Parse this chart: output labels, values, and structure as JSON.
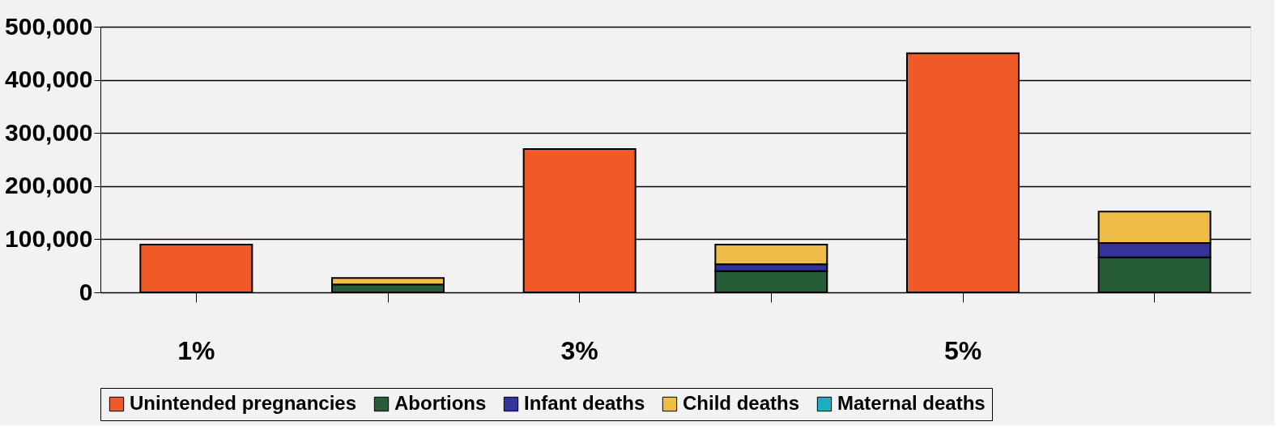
{
  "chart_data": {
    "type": "bar",
    "stacked": true,
    "categories": [
      "1%",
      null,
      "3%",
      null,
      "5%",
      null
    ],
    "series": [
      {
        "name": "Unintended pregnancies",
        "color": "#f05a28",
        "values": [
          90000,
          null,
          270000,
          null,
          450000,
          null
        ]
      },
      {
        "name": "Abortions",
        "color": "#265c38",
        "values": [
          null,
          15000,
          null,
          40000,
          null,
          66000
        ]
      },
      {
        "name": "Infant deaths",
        "color": "#333399",
        "values": [
          null,
          null,
          null,
          13000,
          null,
          27000
        ]
      },
      {
        "name": "Child deaths",
        "color": "#f0bc48",
        "values": [
          null,
          12000,
          null,
          37000,
          null,
          59000
        ]
      },
      {
        "name": "Maternal deaths",
        "color": "#1ab0c0",
        "values": [
          null,
          null,
          null,
          null,
          null,
          null
        ]
      }
    ],
    "ylim": [
      0,
      500000
    ],
    "yticks": [
      {
        "value": 0,
        "label": "0"
      },
      {
        "value": 100000,
        "label": "100,000"
      },
      {
        "value": 200000,
        "label": "200,000"
      },
      {
        "value": 300000,
        "label": "300,000"
      },
      {
        "value": 400000,
        "label": "400,000"
      },
      {
        "value": 500000,
        "label": "500,000"
      }
    ],
    "grid": "y",
    "legend": "bottom"
  }
}
